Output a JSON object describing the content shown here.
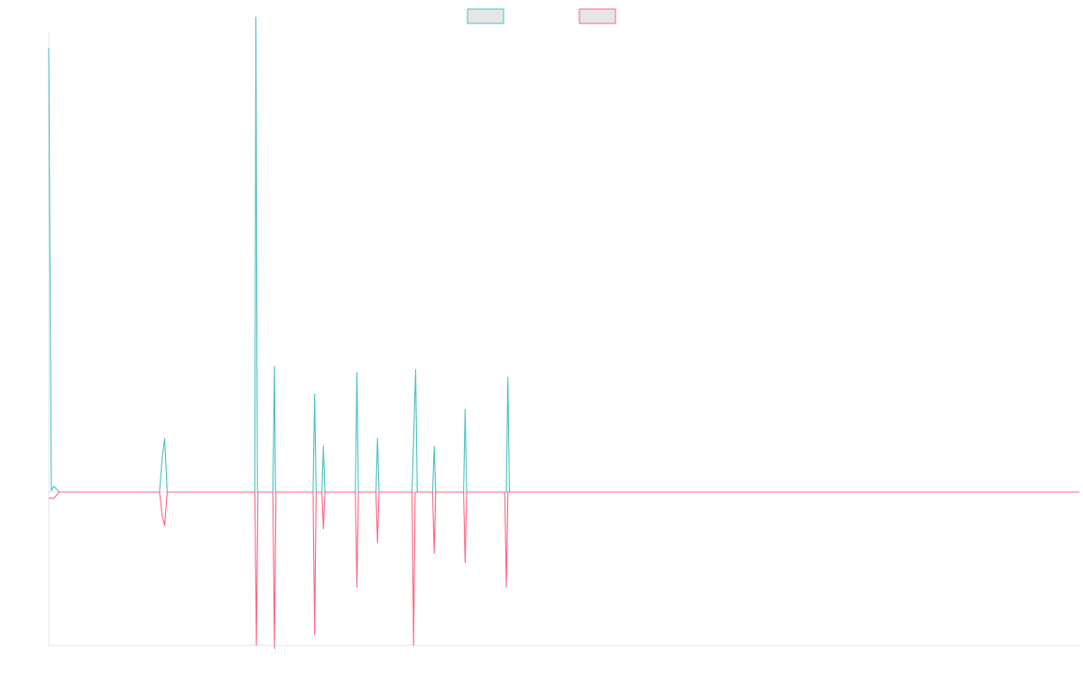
{
  "chart_data": {
    "type": "line",
    "title": "",
    "xlabel": "",
    "ylabel": "",
    "grid": false,
    "legend": "top-center",
    "xlim": [
      0,
      200
    ],
    "ylim": [
      -100,
      300
    ],
    "series": [
      {
        "name": "",
        "color": "#4bc0c0",
        "swatch_fill": "#e6e6e6",
        "points": [
          [
            0,
            290
          ],
          [
            0.5,
            1
          ],
          [
            1,
            4
          ],
          [
            2,
            0
          ],
          [
            3,
            0
          ],
          [
            4,
            0
          ],
          [
            5,
            0
          ],
          [
            21.5,
            0
          ],
          [
            22,
            22
          ],
          [
            22.5,
            35
          ],
          [
            23,
            0
          ],
          [
            40,
            0
          ],
          [
            40.2,
            310
          ],
          [
            40.5,
            0
          ],
          [
            43.5,
            0
          ],
          [
            43.8,
            82
          ],
          [
            44,
            0
          ],
          [
            51.3,
            0
          ],
          [
            51.6,
            64
          ],
          [
            51.9,
            0
          ],
          [
            53,
            0
          ],
          [
            53.3,
            30
          ],
          [
            53.6,
            0
          ],
          [
            59.5,
            0
          ],
          [
            59.8,
            78
          ],
          [
            60.1,
            0
          ],
          [
            63.5,
            0
          ],
          [
            63.8,
            35
          ],
          [
            64.1,
            0
          ],
          [
            70.5,
            0
          ],
          [
            71.2,
            80
          ],
          [
            71.5,
            0
          ],
          [
            74.5,
            0
          ],
          [
            74.8,
            30
          ],
          [
            75.1,
            0
          ],
          [
            80.5,
            0
          ],
          [
            80.8,
            54
          ],
          [
            81.1,
            0
          ],
          [
            88.8,
            0
          ],
          [
            89.1,
            75
          ],
          [
            89.4,
            0
          ],
          [
            200,
            0
          ]
        ]
      },
      {
        "name": "",
        "color": "#ff6384",
        "swatch_fill": "#e6e6e6",
        "points": [
          [
            0,
            -4
          ],
          [
            1,
            -4
          ],
          [
            2,
            0
          ],
          [
            3,
            0
          ],
          [
            21.5,
            0
          ],
          [
            22,
            -15
          ],
          [
            22.5,
            -22
          ],
          [
            23,
            0
          ],
          [
            40,
            0
          ],
          [
            40.3,
            -100
          ],
          [
            40.6,
            0
          ],
          [
            43.5,
            0
          ],
          [
            43.8,
            -102
          ],
          [
            44.1,
            0
          ],
          [
            51.3,
            0
          ],
          [
            51.6,
            -93
          ],
          [
            51.9,
            0
          ],
          [
            53,
            0
          ],
          [
            53.3,
            -24
          ],
          [
            53.6,
            0
          ],
          [
            59.5,
            0
          ],
          [
            59.8,
            -62
          ],
          [
            60.1,
            0
          ],
          [
            63.5,
            0
          ],
          [
            63.8,
            -33
          ],
          [
            64.1,
            0
          ],
          [
            70.5,
            0
          ],
          [
            70.8,
            -100
          ],
          [
            71.1,
            0
          ],
          [
            74.5,
            0
          ],
          [
            74.8,
            -40
          ],
          [
            75.1,
            0
          ],
          [
            80.5,
            0
          ],
          [
            80.8,
            -46
          ],
          [
            81.1,
            0
          ],
          [
            88.5,
            0
          ],
          [
            88.8,
            -62
          ],
          [
            89.1,
            0
          ],
          [
            200,
            0
          ]
        ]
      }
    ]
  }
}
